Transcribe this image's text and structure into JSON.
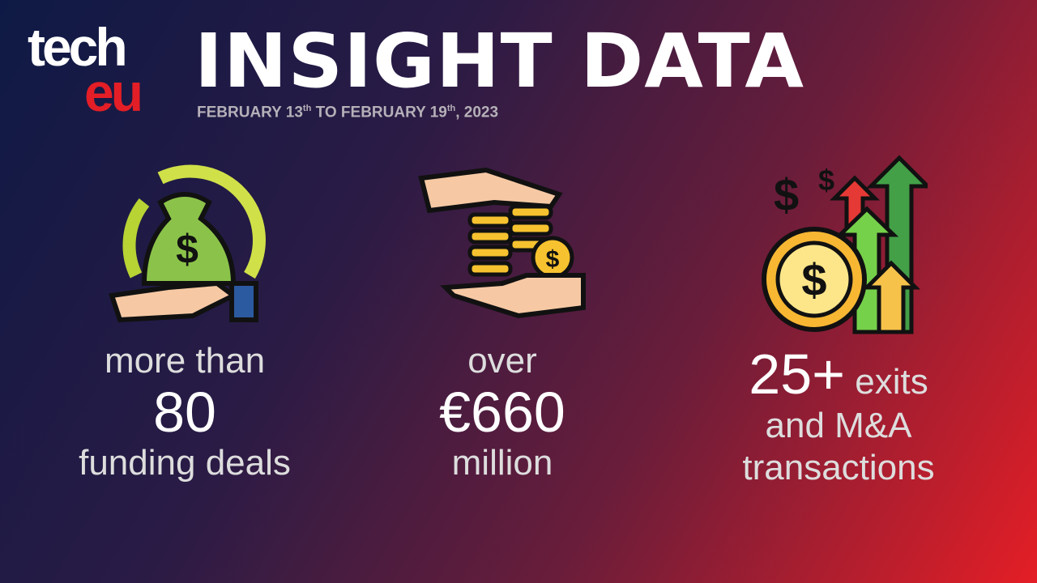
{
  "logo": {
    "line1": "tech",
    "line2": "eu"
  },
  "header": {
    "title": "INSIGHT DATA",
    "date": {
      "start": "FEBRUARY 13",
      "start_sup": "th",
      "middle": " TO FEBRUARY 19",
      "end_sup": "th",
      "year": ", 2023"
    }
  },
  "stats": [
    {
      "icon": "money-bag-cycle-icon",
      "top": "more than",
      "value": "80",
      "bottom": "funding deals"
    },
    {
      "icon": "hands-coins-icon",
      "top": "over",
      "value": "€660",
      "bottom": "million"
    },
    {
      "icon": "coin-growth-arrows-icon",
      "value": "25+",
      "suffix": " exits",
      "line2": "and M&A",
      "line3": "transactions"
    }
  ],
  "colors": {
    "red": "#e41e26",
    "navy": "#0e1a45"
  }
}
